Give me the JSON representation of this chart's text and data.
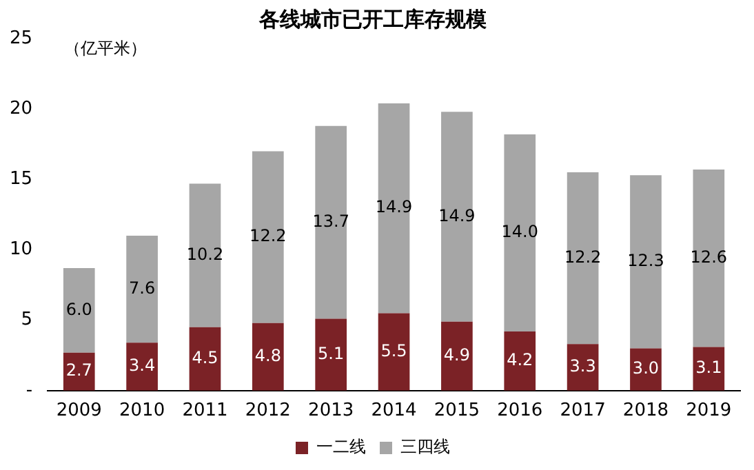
{
  "chart_data": {
    "type": "bar",
    "title": "各线城市已开工库存规模",
    "ylabel": "（亿平米）",
    "categories": [
      "2009",
      "2010",
      "2011",
      "2012",
      "2013",
      "2014",
      "2015",
      "2016",
      "2017",
      "2018",
      "2019"
    ],
    "stacked": true,
    "series": [
      {
        "name": "一二线",
        "color": "#7b2226",
        "values": [
          2.7,
          3.4,
          4.5,
          4.8,
          5.1,
          5.5,
          4.9,
          4.2,
          3.3,
          3.0,
          3.1
        ],
        "value_labels": [
          "2.7",
          "3.4",
          "4.5",
          "4.8",
          "5.1",
          "5.5",
          "4.9",
          "4.2",
          "3.3",
          "3.0",
          "3.1"
        ]
      },
      {
        "name": "三四线",
        "color": "#a6a6a6",
        "values": [
          6.0,
          7.6,
          10.2,
          12.2,
          13.7,
          14.9,
          14.9,
          14.0,
          12.2,
          12.3,
          12.6
        ],
        "value_labels": [
          "6.0",
          "7.6",
          "10.2",
          "12.2",
          "13.7",
          "14.9",
          "14.9",
          "14.0",
          "12.2",
          "12.3",
          "12.6"
        ]
      }
    ],
    "ylim": [
      0,
      25
    ],
    "yticks": [
      {
        "value": 0,
        "label": "-"
      },
      5,
      10,
      15,
      20,
      25
    ],
    "grid": false,
    "legend": "bottom"
  }
}
